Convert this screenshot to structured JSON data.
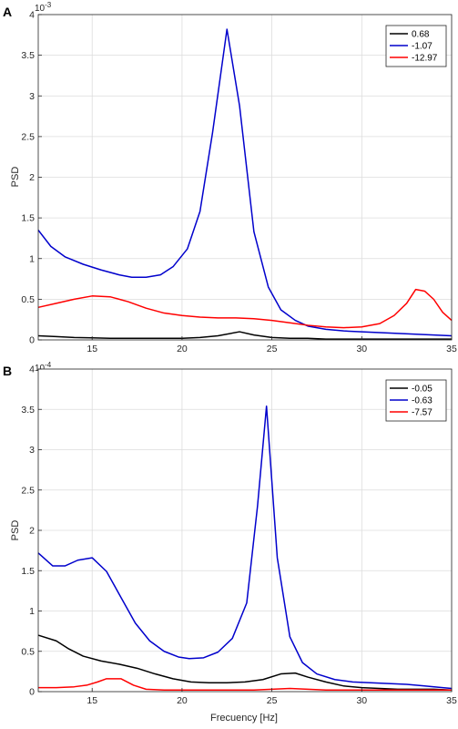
{
  "chart_data": [
    {
      "panel": "A",
      "type": "line",
      "xlabel": "",
      "ylabel": "PSD",
      "y_exponent_base": "10",
      "y_exponent_power": "-3",
      "xlim": [
        12,
        35
      ],
      "ylim": [
        0,
        4
      ],
      "xticks": [
        15,
        20,
        25,
        30,
        35
      ],
      "yticks": [
        0,
        0.5,
        1,
        1.5,
        2,
        2.5,
        3,
        3.5,
        4
      ],
      "grid": true,
      "legend": "top-right",
      "series": [
        {
          "name": "0.68",
          "color": "#000000",
          "x": [
            12,
            13,
            14,
            15,
            16,
            17,
            18,
            19,
            20,
            21,
            22,
            23.2,
            24,
            25,
            26,
            27,
            28,
            29,
            30,
            31,
            32,
            33,
            34,
            35
          ],
          "y": [
            0.05,
            0.04,
            0.03,
            0.025,
            0.02,
            0.02,
            0.02,
            0.02,
            0.02,
            0.03,
            0.05,
            0.1,
            0.06,
            0.03,
            0.02,
            0.02,
            0.01,
            0.01,
            0.01,
            0.01,
            0.01,
            0.01,
            0.01,
            0.01
          ]
        },
        {
          "name": "-1.07",
          "color": "#0000cc",
          "x": [
            12,
            12.7,
            13.5,
            14.5,
            15.5,
            16.5,
            17.2,
            18,
            18.8,
            19.5,
            20.3,
            21,
            21.7,
            22.5,
            23.2,
            24,
            24.8,
            25.5,
            26.3,
            27,
            28,
            29,
            30,
            31,
            32,
            33,
            34,
            35
          ],
          "y": [
            1.35,
            1.15,
            1.02,
            0.93,
            0.86,
            0.8,
            0.77,
            0.77,
            0.8,
            0.9,
            1.12,
            1.58,
            2.55,
            3.82,
            2.88,
            1.33,
            0.65,
            0.37,
            0.24,
            0.17,
            0.13,
            0.11,
            0.1,
            0.09,
            0.08,
            0.07,
            0.06,
            0.05
          ]
        },
        {
          "name": "-12.97",
          "color": "#ff0000",
          "x": [
            12,
            13,
            14,
            15,
            16,
            17,
            18,
            19,
            20,
            21,
            22,
            23,
            24,
            25,
            26,
            27,
            28,
            29,
            30,
            31,
            31.8,
            32.5,
            33,
            33.5,
            34,
            34.5,
            35
          ],
          "y": [
            0.4,
            0.45,
            0.5,
            0.54,
            0.53,
            0.47,
            0.39,
            0.33,
            0.3,
            0.28,
            0.27,
            0.27,
            0.26,
            0.24,
            0.21,
            0.18,
            0.16,
            0.15,
            0.16,
            0.2,
            0.3,
            0.45,
            0.62,
            0.6,
            0.5,
            0.34,
            0.24
          ]
        }
      ]
    },
    {
      "panel": "B",
      "type": "line",
      "xlabel": "Frecuency [Hz]",
      "ylabel": "PSD",
      "y_exponent_base": "10",
      "y_exponent_power": "-4",
      "xlim": [
        12,
        35
      ],
      "ylim": [
        0,
        4
      ],
      "xticks": [
        15,
        20,
        25,
        30,
        35
      ],
      "yticks": [
        0,
        0.5,
        1,
        1.5,
        2,
        2.5,
        3,
        3.5,
        4
      ],
      "grid": true,
      "legend": "top-right",
      "series": [
        {
          "name": "-0.05",
          "color": "#000000",
          "x": [
            12,
            13,
            13.7,
            14.5,
            15.5,
            16.5,
            17.5,
            18.5,
            19.5,
            20.5,
            21.5,
            22.5,
            23.5,
            24.5,
            25.5,
            26.3,
            27,
            28,
            29,
            30,
            31,
            32,
            33,
            34,
            35
          ],
          "y": [
            0.7,
            0.63,
            0.53,
            0.44,
            0.38,
            0.34,
            0.29,
            0.22,
            0.16,
            0.12,
            0.11,
            0.11,
            0.12,
            0.15,
            0.22,
            0.23,
            0.18,
            0.12,
            0.07,
            0.05,
            0.04,
            0.03,
            0.03,
            0.03,
            0.02
          ]
        },
        {
          "name": "-0.63",
          "color": "#0000cc",
          "x": [
            12,
            12.8,
            13.5,
            14.2,
            15,
            15.8,
            16.6,
            17.4,
            18.2,
            19,
            19.8,
            20.4,
            21.2,
            22,
            22.8,
            23.6,
            24.2,
            24.7,
            25.3,
            26,
            26.7,
            27.5,
            28.5,
            29.5,
            30.5,
            31.5,
            32.5,
            33.5,
            34.5,
            35
          ],
          "y": [
            1.72,
            1.56,
            1.56,
            1.63,
            1.66,
            1.49,
            1.17,
            0.85,
            0.63,
            0.5,
            0.43,
            0.41,
            0.42,
            0.49,
            0.66,
            1.1,
            2.3,
            3.54,
            1.66,
            0.68,
            0.36,
            0.22,
            0.15,
            0.12,
            0.11,
            0.1,
            0.09,
            0.07,
            0.05,
            0.04
          ]
        },
        {
          "name": "-7.57",
          "color": "#ff0000",
          "x": [
            12,
            13,
            14,
            14.7,
            15.3,
            15.8,
            16.6,
            17.3,
            18,
            19,
            20,
            21,
            22,
            23,
            24,
            25,
            26,
            27,
            28,
            29,
            30,
            31,
            32,
            33,
            34,
            35
          ],
          "y": [
            0.05,
            0.05,
            0.06,
            0.08,
            0.12,
            0.16,
            0.16,
            0.08,
            0.03,
            0.02,
            0.02,
            0.02,
            0.02,
            0.02,
            0.02,
            0.03,
            0.04,
            0.03,
            0.02,
            0.02,
            0.02,
            0.02,
            0.02,
            0.02,
            0.02,
            0.02
          ]
        }
      ]
    }
  ]
}
